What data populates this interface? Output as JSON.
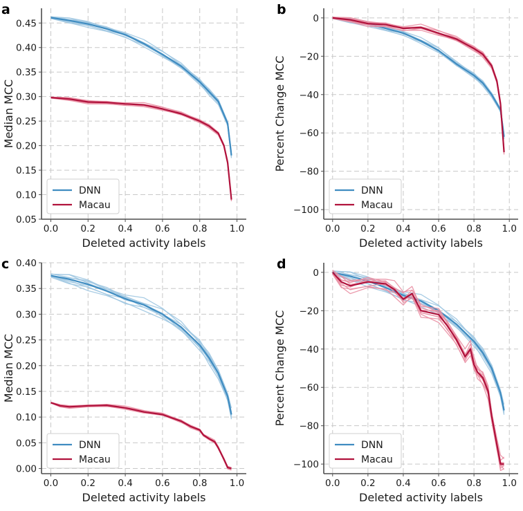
{
  "colors": {
    "dnn_main": "#3f8cc1",
    "dnn_replicate": "#9ec6e1",
    "macau_main": "#b0123c",
    "macau_replicate": "#e98fa3"
  },
  "chart_data": [
    {
      "panel": "a",
      "type": "line",
      "xlabel": "Deleted activity labels",
      "ylabel": "Median MCC",
      "xlim": [
        -0.05,
        1.05
      ],
      "ylim": [
        0.05,
        0.48
      ],
      "xticks": [
        "0.0",
        "0.2",
        "0.4",
        "0.6",
        "0.8",
        "1.0"
      ],
      "xtick_values": [
        0.0,
        0.2,
        0.4,
        0.6,
        0.8,
        1.0
      ],
      "yticks": [
        "0.05",
        "0.10",
        "0.15",
        "0.20",
        "0.25",
        "0.30",
        "0.35",
        "0.40",
        "0.45"
      ],
      "ytick_values": [
        0.05,
        0.1,
        0.15,
        0.2,
        0.25,
        0.3,
        0.35,
        0.4,
        0.45
      ],
      "legend": {
        "entries": [
          "DNN",
          "Macau"
        ],
        "location": "lower-left"
      },
      "series": [
        {
          "name": "DNN",
          "replicate_spread": 0.007,
          "x": [
            0.0,
            0.1,
            0.2,
            0.3,
            0.4,
            0.5,
            0.6,
            0.7,
            0.8,
            0.85,
            0.9,
            0.95,
            0.97
          ],
          "values": [
            0.461,
            0.455,
            0.448,
            0.438,
            0.426,
            0.408,
            0.386,
            0.362,
            0.33,
            0.31,
            0.29,
            0.245,
            0.18
          ]
        },
        {
          "name": "Macau",
          "replicate_spread": 0.004,
          "x": [
            0.0,
            0.1,
            0.2,
            0.3,
            0.4,
            0.5,
            0.6,
            0.7,
            0.8,
            0.85,
            0.9,
            0.93,
            0.95,
            0.97
          ],
          "values": [
            0.298,
            0.295,
            0.289,
            0.288,
            0.285,
            0.283,
            0.275,
            0.265,
            0.25,
            0.24,
            0.225,
            0.2,
            0.165,
            0.09
          ]
        }
      ]
    },
    {
      "panel": "b",
      "type": "line",
      "xlabel": "Deleted activity labels",
      "ylabel": "Percent Change MCC",
      "xlim": [
        -0.05,
        1.05
      ],
      "ylim": [
        -105,
        5
      ],
      "xticks": [
        "0.0",
        "0.2",
        "0.4",
        "0.6",
        "0.8",
        "1.0"
      ],
      "xtick_values": [
        0.0,
        0.2,
        0.4,
        0.6,
        0.8,
        1.0
      ],
      "yticks": [
        "0",
        "−20",
        "−40",
        "−60",
        "−80",
        "−100"
      ],
      "ytick_values": [
        0,
        -20,
        -40,
        -60,
        -80,
        -100
      ],
      "legend": {
        "entries": [
          "DNN",
          "Macau"
        ],
        "location": "lower-left"
      },
      "series": [
        {
          "name": "DNN",
          "replicate_spread": 1.5,
          "x": [
            0.0,
            0.1,
            0.2,
            0.3,
            0.4,
            0.5,
            0.6,
            0.7,
            0.8,
            0.85,
            0.9,
            0.95,
            0.97
          ],
          "values": [
            0,
            -1.5,
            -3,
            -5.5,
            -8,
            -12,
            -17,
            -24,
            -30,
            -34,
            -40,
            -48,
            -62
          ]
        },
        {
          "name": "Macau",
          "replicate_spread": 1.5,
          "x": [
            0.0,
            0.1,
            0.2,
            0.3,
            0.4,
            0.5,
            0.6,
            0.7,
            0.8,
            0.85,
            0.9,
            0.93,
            0.95,
            0.97
          ],
          "values": [
            0,
            -1,
            -3,
            -3.5,
            -5.5,
            -5,
            -8,
            -11,
            -16,
            -19,
            -25,
            -33,
            -45,
            -70
          ]
        }
      ]
    },
    {
      "panel": "c",
      "type": "line",
      "xlabel": "Deleted activity labels",
      "ylabel": "Median MCC",
      "xlim": [
        -0.05,
        1.05
      ],
      "ylim": [
        -0.01,
        0.4
      ],
      "xticks": [
        "0.0",
        "0.2",
        "0.4",
        "0.6",
        "0.8",
        "1.0"
      ],
      "xtick_values": [
        0.0,
        0.2,
        0.4,
        0.6,
        0.8,
        1.0
      ],
      "yticks": [
        "0.00",
        "0.05",
        "0.10",
        "0.15",
        "0.20",
        "0.25",
        "0.30",
        "0.35",
        "0.40"
      ],
      "ytick_values": [
        0.0,
        0.05,
        0.1,
        0.15,
        0.2,
        0.25,
        0.3,
        0.35,
        0.4
      ],
      "legend": {
        "entries": [
          "DNN",
          "Macau"
        ],
        "location": "lower-left"
      },
      "series": [
        {
          "name": "DNN",
          "replicate_spread": 0.012,
          "x": [
            0.0,
            0.1,
            0.2,
            0.3,
            0.4,
            0.5,
            0.6,
            0.7,
            0.8,
            0.85,
            0.9,
            0.95,
            0.97
          ],
          "values": [
            0.375,
            0.368,
            0.358,
            0.345,
            0.33,
            0.318,
            0.3,
            0.275,
            0.24,
            0.215,
            0.185,
            0.14,
            0.105
          ]
        },
        {
          "name": "Macau",
          "replicate_spread": 0.003,
          "x": [
            0.0,
            0.05,
            0.1,
            0.2,
            0.3,
            0.4,
            0.5,
            0.6,
            0.7,
            0.75,
            0.8,
            0.82,
            0.85,
            0.88,
            0.9,
            0.93,
            0.95,
            0.97
          ],
          "values": [
            0.128,
            0.122,
            0.12,
            0.122,
            0.123,
            0.118,
            0.11,
            0.105,
            0.092,
            0.082,
            0.075,
            0.065,
            0.058,
            0.052,
            0.04,
            0.018,
            0.002,
            0.0
          ]
        }
      ]
    },
    {
      "panel": "d",
      "type": "line",
      "xlabel": "Deleted activity labels",
      "ylabel": "Percent Change MCC",
      "xlim": [
        -0.05,
        1.05
      ],
      "ylim": [
        -105,
        5
      ],
      "xticks": [
        "0.0",
        "0.2",
        "0.4",
        "0.6",
        "0.8",
        "1.0"
      ],
      "xtick_values": [
        0.0,
        0.2,
        0.4,
        0.6,
        0.8,
        1.0
      ],
      "yticks": [
        "0",
        "−20",
        "−40",
        "−60",
        "−80",
        "−100"
      ],
      "ytick_values": [
        0,
        -20,
        -40,
        -60,
        -80,
        -100
      ],
      "legend": {
        "entries": [
          "DNN",
          "Macau"
        ],
        "location": "lower-left"
      },
      "series": [
        {
          "name": "DNN",
          "replicate_spread": 3.0,
          "x": [
            0.0,
            0.1,
            0.2,
            0.3,
            0.4,
            0.5,
            0.6,
            0.7,
            0.8,
            0.85,
            0.9,
            0.95,
            0.97
          ],
          "values": [
            0,
            -2,
            -4.5,
            -8,
            -12,
            -15,
            -20,
            -27,
            -36,
            -42,
            -50,
            -63,
            -72
          ]
        },
        {
          "name": "Macau",
          "replicate_spread": 4.0,
          "x": [
            0.0,
            0.05,
            0.1,
            0.2,
            0.3,
            0.35,
            0.4,
            0.45,
            0.5,
            0.6,
            0.65,
            0.7,
            0.75,
            0.78,
            0.8,
            0.82,
            0.85,
            0.88,
            0.9,
            0.93,
            0.95,
            0.97
          ],
          "values": [
            0,
            -5,
            -7,
            -5,
            -6,
            -9,
            -14,
            -11,
            -20,
            -22,
            -28,
            -35,
            -44,
            -40,
            -48,
            -52,
            -55,
            -62,
            -75,
            -90,
            -100,
            -100
          ]
        }
      ]
    }
  ]
}
